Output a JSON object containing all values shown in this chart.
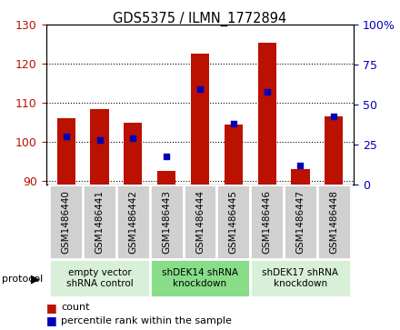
{
  "title": "GDS5375 / ILMN_1772894",
  "samples": [
    "GSM1486440",
    "GSM1486441",
    "GSM1486442",
    "GSM1486443",
    "GSM1486444",
    "GSM1486445",
    "GSM1486446",
    "GSM1486447",
    "GSM1486448"
  ],
  "counts": [
    106,
    108.5,
    105,
    92.5,
    122.5,
    104.5,
    125.5,
    93,
    106.5
  ],
  "percentiles": [
    30,
    28,
    29,
    18,
    60,
    38,
    58,
    12,
    43
  ],
  "ylim_left": [
    89,
    130
  ],
  "ylim_right": [
    0,
    100
  ],
  "yticks_left": [
    90,
    100,
    110,
    120,
    130
  ],
  "yticks_right": [
    0,
    25,
    50,
    75,
    100
  ],
  "bar_color": "#bb1100",
  "dot_color": "#0000bb",
  "protocol_groups": [
    {
      "label": "empty vector\nshRNA control",
      "start": 0,
      "end": 3,
      "color": "#d8f0d8"
    },
    {
      "label": "shDEK14 shRNA\nknockdown",
      "start": 3,
      "end": 6,
      "color": "#88dd88"
    },
    {
      "label": "shDEK17 shRNA\nknockdown",
      "start": 6,
      "end": 9,
      "color": "#d8f0d8"
    }
  ],
  "legend_count_label": "count",
  "legend_pct_label": "percentile rank within the sample",
  "protocol_label": "protocol",
  "sample_bg_color": "#d0d0d0",
  "sample_border_color": "#ffffff"
}
